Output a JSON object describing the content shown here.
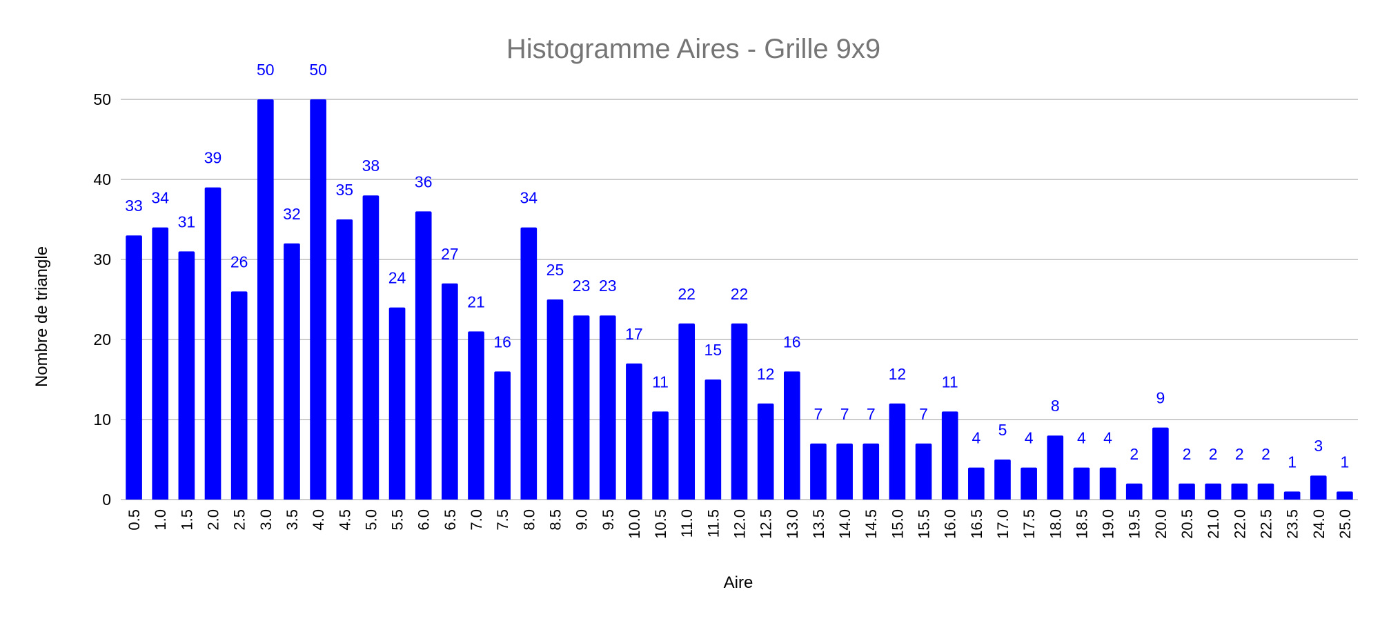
{
  "chart_data": {
    "type": "bar",
    "title": "Histogramme Aires - Grille 9x9",
    "xlabel": "Aire",
    "ylabel": "Nombre de triangle",
    "ylim": [
      0,
      50
    ],
    "yticks": [
      "0",
      "10",
      "20",
      "30",
      "40",
      "50"
    ],
    "grid": true,
    "bar_color": "#0000ff",
    "label_color": "#0000ff",
    "categories": [
      "0.5",
      "1.0",
      "1.5",
      "2.0",
      "2.5",
      "3.0",
      "3.5",
      "4.0",
      "4.5",
      "5.0",
      "5.5",
      "6.0",
      "6.5",
      "7.0",
      "7.5",
      "8.0",
      "8.5",
      "9.0",
      "9.5",
      "10.0",
      "10.5",
      "11.0",
      "11.5",
      "12.0",
      "12.5",
      "13.0",
      "13.5",
      "14.0",
      "14.5",
      "15.0",
      "15.5",
      "16.0",
      "16.5",
      "17.0",
      "17.5",
      "18.0",
      "18.5",
      "19.0",
      "19.5",
      "20.0",
      "20.5",
      "21.0",
      "22.0",
      "22.5",
      "23.5",
      "24.0",
      "25.0"
    ],
    "values": [
      33,
      34,
      31,
      39,
      26,
      50,
      32,
      50,
      35,
      38,
      24,
      36,
      27,
      21,
      16,
      34,
      25,
      23,
      23,
      17,
      11,
      22,
      15,
      22,
      12,
      16,
      7,
      7,
      7,
      12,
      7,
      11,
      4,
      5,
      4,
      8,
      4,
      4,
      2,
      9,
      2,
      2,
      2,
      2,
      1,
      3,
      1
    ]
  }
}
